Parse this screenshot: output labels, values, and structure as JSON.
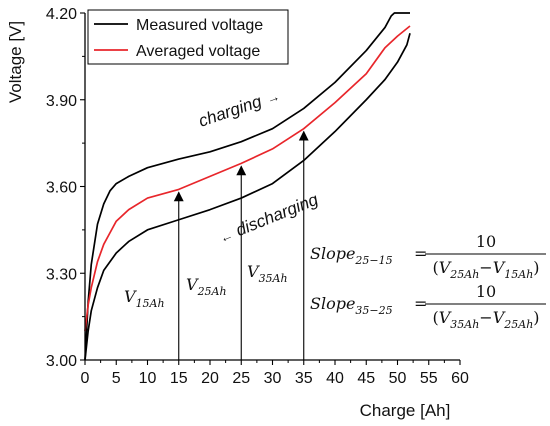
{
  "chart_data": {
    "type": "line",
    "xlabel": "Charge [Ah]",
    "ylabel": "Voltage [V]",
    "xlim": [
      0,
      60
    ],
    "ylim": [
      3.0,
      4.2
    ],
    "x_ticks": [
      0,
      5,
      10,
      15,
      20,
      25,
      30,
      35,
      40,
      45,
      50,
      55,
      60
    ],
    "y_ticks": [
      3.0,
      3.3,
      3.6,
      3.9,
      4.2
    ],
    "y_tick_labels": [
      "3.00",
      "3.30",
      "3.60",
      "3.90",
      "4.20"
    ],
    "grid": false,
    "legend_position": "top-left",
    "series": [
      {
        "name": "Measured voltage",
        "color": "#000000",
        "segment": "charging",
        "points": [
          [
            0,
            3.0
          ],
          [
            0.5,
            3.2
          ],
          [
            1,
            3.33
          ],
          [
            2,
            3.47
          ],
          [
            3,
            3.54
          ],
          [
            4,
            3.585
          ],
          [
            5,
            3.61
          ],
          [
            7,
            3.635
          ],
          [
            10,
            3.665
          ],
          [
            15,
            3.695
          ],
          [
            20,
            3.72
          ],
          [
            25,
            3.755
          ],
          [
            30,
            3.8
          ],
          [
            35,
            3.87
          ],
          [
            40,
            3.96
          ],
          [
            45,
            4.07
          ],
          [
            48,
            4.15
          ],
          [
            49,
            4.19
          ],
          [
            49.5,
            4.2
          ],
          [
            52,
            4.2
          ]
        ]
      },
      {
        "name": "",
        "color": "#000000",
        "segment": "discharging",
        "points": [
          [
            0,
            3.0
          ],
          [
            0.5,
            3.1
          ],
          [
            1,
            3.17
          ],
          [
            2,
            3.25
          ],
          [
            3,
            3.31
          ],
          [
            5,
            3.37
          ],
          [
            7,
            3.41
          ],
          [
            10,
            3.45
          ],
          [
            15,
            3.485
          ],
          [
            20,
            3.52
          ],
          [
            25,
            3.56
          ],
          [
            30,
            3.61
          ],
          [
            35,
            3.69
          ],
          [
            40,
            3.79
          ],
          [
            45,
            3.9
          ],
          [
            48,
            3.97
          ],
          [
            50,
            4.03
          ],
          [
            51.5,
            4.09
          ],
          [
            52,
            4.13
          ]
        ]
      },
      {
        "name": "Averaged voltage",
        "color": "#e8262b",
        "points": [
          [
            0,
            3.1
          ],
          [
            0.5,
            3.19
          ],
          [
            1,
            3.25
          ],
          [
            2,
            3.34
          ],
          [
            3,
            3.4
          ],
          [
            4,
            3.44
          ],
          [
            5,
            3.48
          ],
          [
            7,
            3.52
          ],
          [
            10,
            3.56
          ],
          [
            15,
            3.59
          ],
          [
            20,
            3.635
          ],
          [
            25,
            3.68
          ],
          [
            30,
            3.73
          ],
          [
            35,
            3.8
          ],
          [
            40,
            3.89
          ],
          [
            45,
            3.99
          ],
          [
            48,
            4.08
          ],
          [
            50,
            4.12
          ],
          [
            52,
            4.155
          ]
        ]
      }
    ],
    "markers": [
      {
        "x": 15,
        "y": 3.59,
        "label_main": "V",
        "label_sub": "15Ah"
      },
      {
        "x": 25,
        "y": 3.68,
        "label_main": "V",
        "label_sub": "25Ah"
      },
      {
        "x": 35,
        "y": 3.8,
        "label_main": "V",
        "label_sub": "35Ah"
      }
    ],
    "annotations": {
      "charging": "charging",
      "charging_arrow": "→",
      "discharging": "discharging",
      "discharging_arrow": "←"
    },
    "formulas": [
      {
        "lhs": "Slope",
        "lhs_sub": "25−15",
        "eq": "=",
        "numerator": "10",
        "den_a": "V",
        "den_a_sub": "25Ah",
        "minus": "−",
        "den_b": "V",
        "den_b_sub": "15Ah",
        "open": "(",
        "close": ")"
      },
      {
        "lhs": "Slope",
        "lhs_sub": "35−25",
        "eq": "=",
        "numerator": "10",
        "den_a": "V",
        "den_a_sub": "35Ah",
        "minus": "−",
        "den_b": "V",
        "den_b_sub": "25Ah",
        "open": "(",
        "close": ")"
      }
    ]
  }
}
